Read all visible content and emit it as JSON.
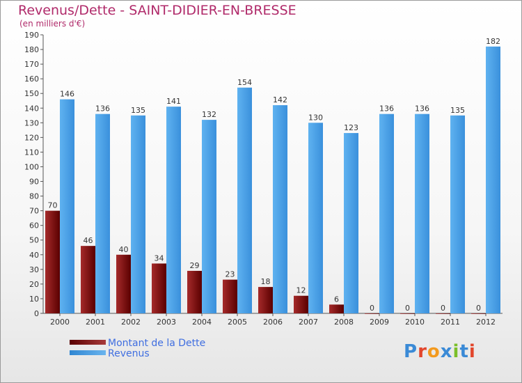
{
  "header": {
    "title": "Revenus/Dette - SAINT-DIDIER-EN-BRESSE",
    "subtitle": "(en milliers d'€)"
  },
  "legend": {
    "dette_label": "Montant de la Dette",
    "revenus_label": "Revenus"
  },
  "logo": {
    "text": "Proxiti"
  },
  "colors": {
    "dette": "#7a1010",
    "revenus": "#4aa3e8",
    "title": "#b02a6a",
    "legend_text": "#3f6ee0"
  },
  "chart_data": {
    "type": "bar",
    "title": "Revenus/Dette - SAINT-DIDIER-EN-BRESSE",
    "ylabel": "(en milliers d'€)",
    "categories": [
      "2000",
      "2001",
      "2002",
      "2003",
      "2004",
      "2005",
      "2006",
      "2007",
      "2008",
      "2009",
      "2010",
      "2011",
      "2012"
    ],
    "series": [
      {
        "name": "Montant de la Dette",
        "values": [
          70,
          46,
          40,
          34,
          29,
          23,
          18,
          12,
          6,
          0,
          0,
          0,
          0
        ]
      },
      {
        "name": "Revenus",
        "values": [
          146,
          136,
          135,
          141,
          132,
          154,
          142,
          130,
          123,
          136,
          136,
          135,
          182
        ]
      }
    ],
    "ylim": [
      0,
      190
    ],
    "ytick_step": 10,
    "grid": false,
    "legend_position": "bottom-left"
  }
}
